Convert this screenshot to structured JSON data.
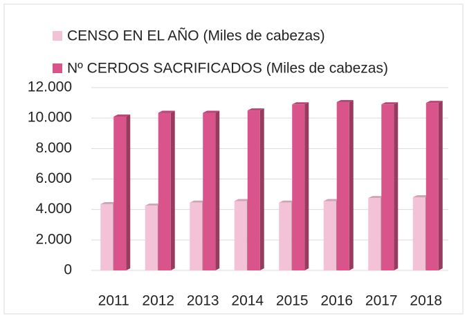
{
  "chart_data": {
    "type": "bar",
    "categories": [
      "2011",
      "2012",
      "2013",
      "2014",
      "2015",
      "2016",
      "2017",
      "2018"
    ],
    "series": [
      {
        "name": "CENSO EN EL AÑO (Miles de cabezas)",
        "color": "#f4c2d6",
        "values": [
          4350,
          4250,
          4450,
          4550,
          4450,
          4550,
          4750,
          4800
        ]
      },
      {
        "name": "Nº CERDOS SACRIFICADOS (Miles de cabezas)",
        "color": "#d9548b",
        "values": [
          10100,
          10350,
          10350,
          10500,
          10900,
          11050,
          10900,
          11000
        ]
      }
    ],
    "ylim": [
      0,
      12000
    ],
    "yticks": [
      0,
      {
        "value": 2000,
        "label": "2.000"
      },
      {
        "value": 4000,
        "label": "4.000"
      },
      {
        "value": 6000,
        "label": "6.000"
      },
      {
        "value": 8000,
        "label": "8.000"
      },
      {
        "value": 10000,
        "label": "10.000"
      },
      {
        "value": 12000,
        "label": "12.000"
      }
    ],
    "grid": true,
    "legend": "top"
  }
}
